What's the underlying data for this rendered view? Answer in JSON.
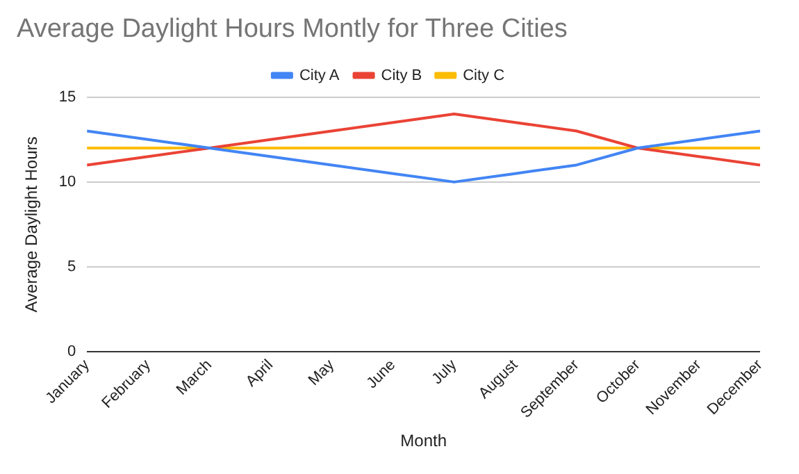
{
  "chart_data": {
    "type": "line",
    "title": "Average Daylight Hours Montly for Three Cities",
    "xlabel": "Month",
    "ylabel": "Average Daylight Hours",
    "categories": [
      "January",
      "February",
      "March",
      "April",
      "May",
      "June",
      "July",
      "August",
      "September",
      "October",
      "November",
      "December"
    ],
    "series": [
      {
        "name": "City A",
        "color": "#4285f4",
        "values": [
          13,
          12.5,
          12,
          11.5,
          11,
          10.5,
          10,
          10.5,
          11,
          12,
          12.5,
          13
        ]
      },
      {
        "name": "City B",
        "color": "#ea4335",
        "values": [
          11,
          11.5,
          12,
          12.5,
          13,
          13.5,
          14,
          13.5,
          13,
          12,
          11.5,
          11
        ]
      },
      {
        "name": "City C",
        "color": "#fbbc04",
        "values": [
          12,
          12,
          12,
          12,
          12,
          12,
          12,
          12,
          12,
          12,
          12,
          12
        ]
      }
    ],
    "ylim": [
      0,
      15
    ],
    "yticks": [
      0,
      5,
      10,
      15
    ],
    "grid": "y",
    "legend": "top",
    "marker": "none",
    "line_style": "solid"
  }
}
